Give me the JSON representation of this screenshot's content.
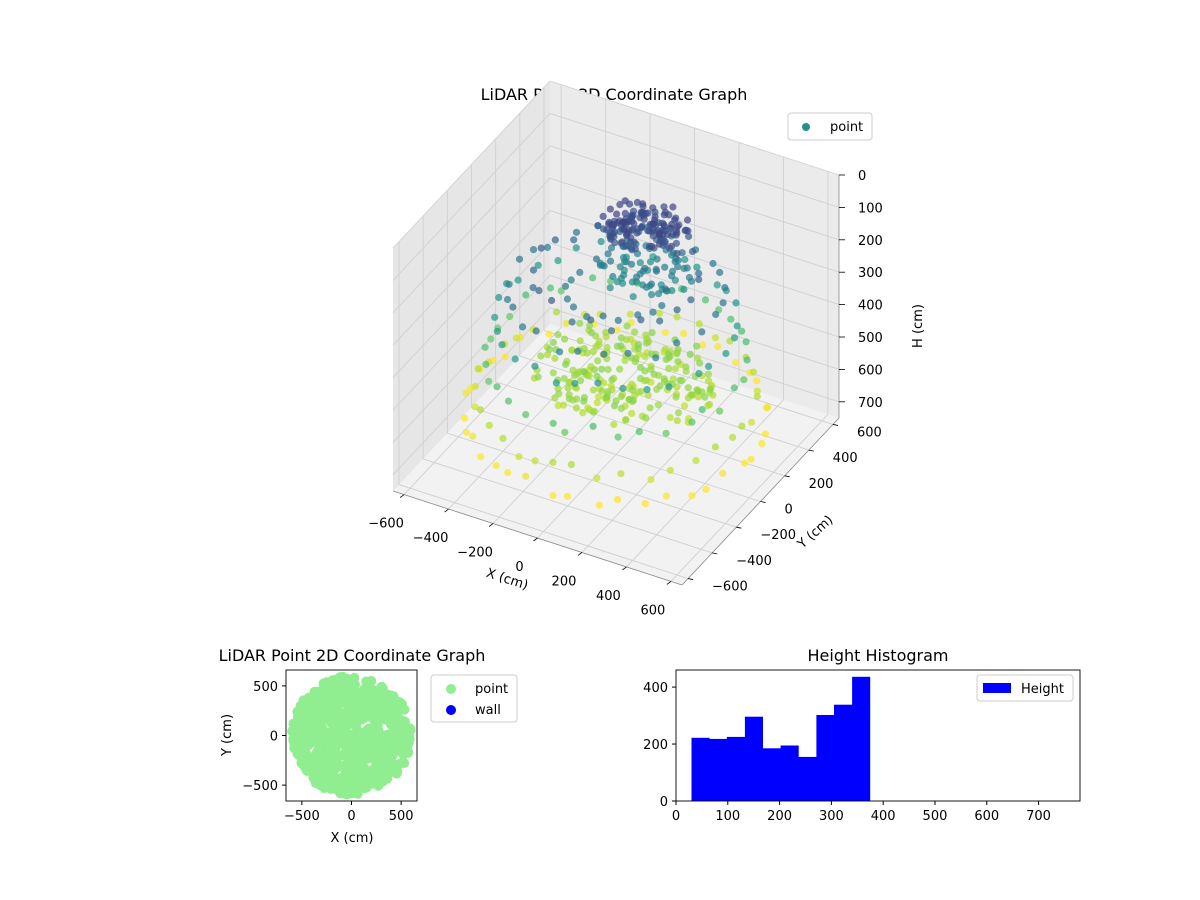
{
  "colors": {
    "viridis_low": "#440154",
    "viridis_mid": "#21918c",
    "viridis_high": "#fde725",
    "scatter2d_point": "#90ee90",
    "scatter2d_wall": "#0000ff",
    "histogram_bar": "#0000ff",
    "legend_point_3d": "#21918c"
  },
  "chart_data": [
    {
      "type": "scatter",
      "projection": "3d",
      "title": "LiDAR Point 3D Coordinate Graph",
      "xlabel": "X (cm)",
      "ylabel": "Y (cm)",
      "zlabel": "H (cm)",
      "xlim": [
        -650,
        650
      ],
      "ylim": [
        -650,
        650
      ],
      "zlim": [
        0,
        750
      ],
      "z_inverted": true,
      "xticks": [
        "−600",
        "−400",
        "−200",
        "0",
        "200",
        "400",
        "600"
      ],
      "yticks": [
        "−600",
        "−400",
        "−200",
        "0",
        "200",
        "400",
        "600"
      ],
      "zticks": [
        "0",
        "100",
        "200",
        "300",
        "400",
        "500",
        "600",
        "700"
      ],
      "legend": {
        "position": "upper-right",
        "entries": [
          "point"
        ]
      },
      "grid": true,
      "colormap": "viridis",
      "series": [
        {
          "name": "point",
          "rings": [
            {
              "r": 600,
              "h": 620,
              "n": 40
            },
            {
              "r": 560,
              "h": 560,
              "n": 36
            },
            {
              "r": 520,
              "h": 450,
              "n": 34
            },
            {
              "r": 480,
              "h": 330,
              "n": 30
            },
            {
              "r": 430,
              "h": 250,
              "n": 26
            },
            {
              "r": 330,
              "h": 200,
              "n": 22
            },
            {
              "r": 200,
              "h": 250,
              "n": 18
            }
          ],
          "clusters": [
            {
              "x": 0,
              "y": 60,
              "h": 530,
              "spread": 380,
              "n": 220
            },
            {
              "x": 0,
              "y": 250,
              "h": 150,
              "spread": 180,
              "n": 140
            },
            {
              "x": 0,
              "y": 250,
              "h": 280,
              "spread": 200,
              "n": 60
            }
          ]
        }
      ]
    },
    {
      "type": "scatter",
      "title": "LiDAR Point 2D Coordinate Graph",
      "xlabel": "X (cm)",
      "ylabel": "Y (cm)",
      "xlim": [
        -660,
        660
      ],
      "ylim": [
        -660,
        660
      ],
      "xticks": [
        "−500",
        "0",
        "500"
      ],
      "yticks": [
        "500",
        "0",
        "−500"
      ],
      "legend": {
        "position": "outside-right",
        "entries": [
          "point",
          "wall"
        ]
      },
      "grid": false,
      "series": [
        {
          "name": "point",
          "shape": "disk",
          "radius": 600,
          "n": 700
        },
        {
          "name": "wall",
          "values": []
        }
      ]
    },
    {
      "type": "bar",
      "title": "Height Histogram",
      "xlabel": "",
      "ylabel": "",
      "xlim": [
        0,
        780
      ],
      "ylim": [
        0,
        460
      ],
      "xticks": [
        "0",
        "100",
        "200",
        "300",
        "400",
        "500",
        "600",
        "700"
      ],
      "yticks": [
        "0",
        "200",
        "400"
      ],
      "legend": {
        "position": "upper-right",
        "entries": [
          "Height"
        ]
      },
      "grid": false,
      "series": [
        {
          "name": "Height",
          "bins": [
            {
              "x0": 30,
              "x1": 64,
              "value": 222
            },
            {
              "x0": 64,
              "x1": 98,
              "value": 218
            },
            {
              "x0": 98,
              "x1": 133,
              "value": 225
            },
            {
              "x0": 133,
              "x1": 167,
              "value": 296
            },
            {
              "x0": 167,
              "x1": 202,
              "value": 185
            },
            {
              "x0": 202,
              "x1": 236,
              "value": 195
            },
            {
              "x0": 236,
              "x1": 271,
              "value": 155
            },
            {
              "x0": 271,
              "x1": 305,
              "value": 302
            },
            {
              "x0": 305,
              "x1": 340,
              "value": 338
            },
            {
              "x0": 340,
              "x1": 374,
              "value": 436
            }
          ]
        }
      ]
    }
  ]
}
